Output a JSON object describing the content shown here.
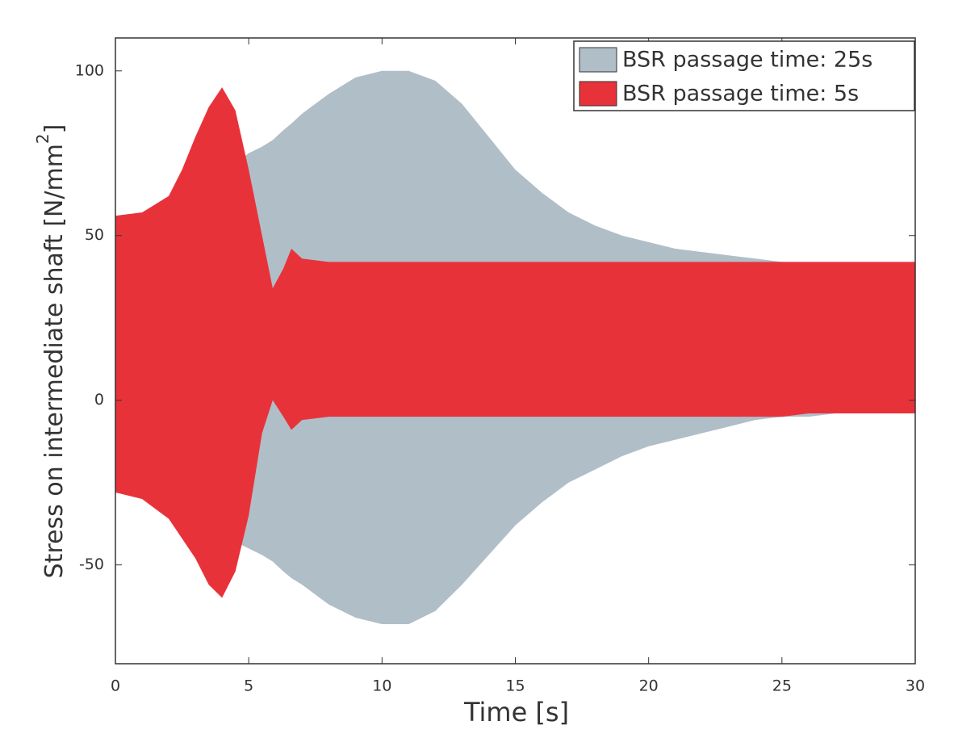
{
  "chart_data": {
    "type": "band",
    "xlabel": "Time [s]",
    "ylabel": [
      "Stress on intermediate shaft [N/mm",
      "2",
      "]"
    ],
    "x": [
      0,
      1,
      2,
      2.5,
      3,
      3.5,
      4,
      4.5,
      5,
      5.5,
      5.9,
      6.3,
      6.6,
      7,
      8,
      9,
      10,
      11,
      12,
      13,
      14,
      15,
      16,
      17,
      18,
      19,
      20,
      21,
      22,
      23,
      24,
      25,
      26,
      27,
      28,
      29,
      30
    ],
    "series": [
      {
        "name": "BSR passage time: 25s",
        "color": "#b0bec7",
        "upper": [
          56,
          57,
          60,
          63,
          66,
          68,
          70,
          72,
          75,
          77,
          79,
          82,
          84,
          87,
          93,
          98,
          100,
          100,
          97,
          90,
          80,
          70,
          63,
          57,
          53,
          50,
          48,
          46,
          45,
          44,
          43,
          42,
          42,
          42,
          42,
          42,
          42
        ],
        "lower": [
          -28,
          -29,
          -31,
          -33,
          -36,
          -38,
          -41,
          -43,
          -45,
          -47,
          -49,
          -52,
          -54,
          -56,
          -62,
          -66,
          -68,
          -68,
          -64,
          -56,
          -47,
          -38,
          -31,
          -25,
          -21,
          -17,
          -14,
          -12,
          -10,
          -8,
          -6,
          -5,
          -5,
          -4,
          -4,
          -4,
          -4
        ]
      },
      {
        "name": "BSR passage time: 5s",
        "color": "#e8323a",
        "upper": [
          56,
          57,
          62,
          70,
          80,
          89,
          95,
          88,
          70,
          50,
          34,
          40,
          46,
          43,
          42,
          42,
          42,
          42,
          42,
          42,
          42,
          42,
          42,
          42,
          42,
          42,
          42,
          42,
          42,
          42,
          42,
          42,
          42,
          42,
          42,
          42,
          42
        ],
        "lower": [
          -28,
          -30,
          -36,
          -42,
          -48,
          -56,
          -60,
          -52,
          -35,
          -10,
          0,
          -5,
          -9,
          -6,
          -5,
          -5,
          -5,
          -5,
          -5,
          -5,
          -5,
          -5,
          -5,
          -5,
          -5,
          -5,
          -5,
          -5,
          -5,
          -5,
          -5,
          -5,
          -4,
          -4,
          -4,
          -4,
          -4
        ]
      }
    ],
    "xlim": [
      0,
      30
    ],
    "xticks": [
      0,
      5,
      10,
      15,
      20,
      25,
      30
    ],
    "ylim": [
      -80,
      110
    ],
    "yticks": [
      -50,
      0,
      50,
      100
    ],
    "legend": "upper right"
  }
}
